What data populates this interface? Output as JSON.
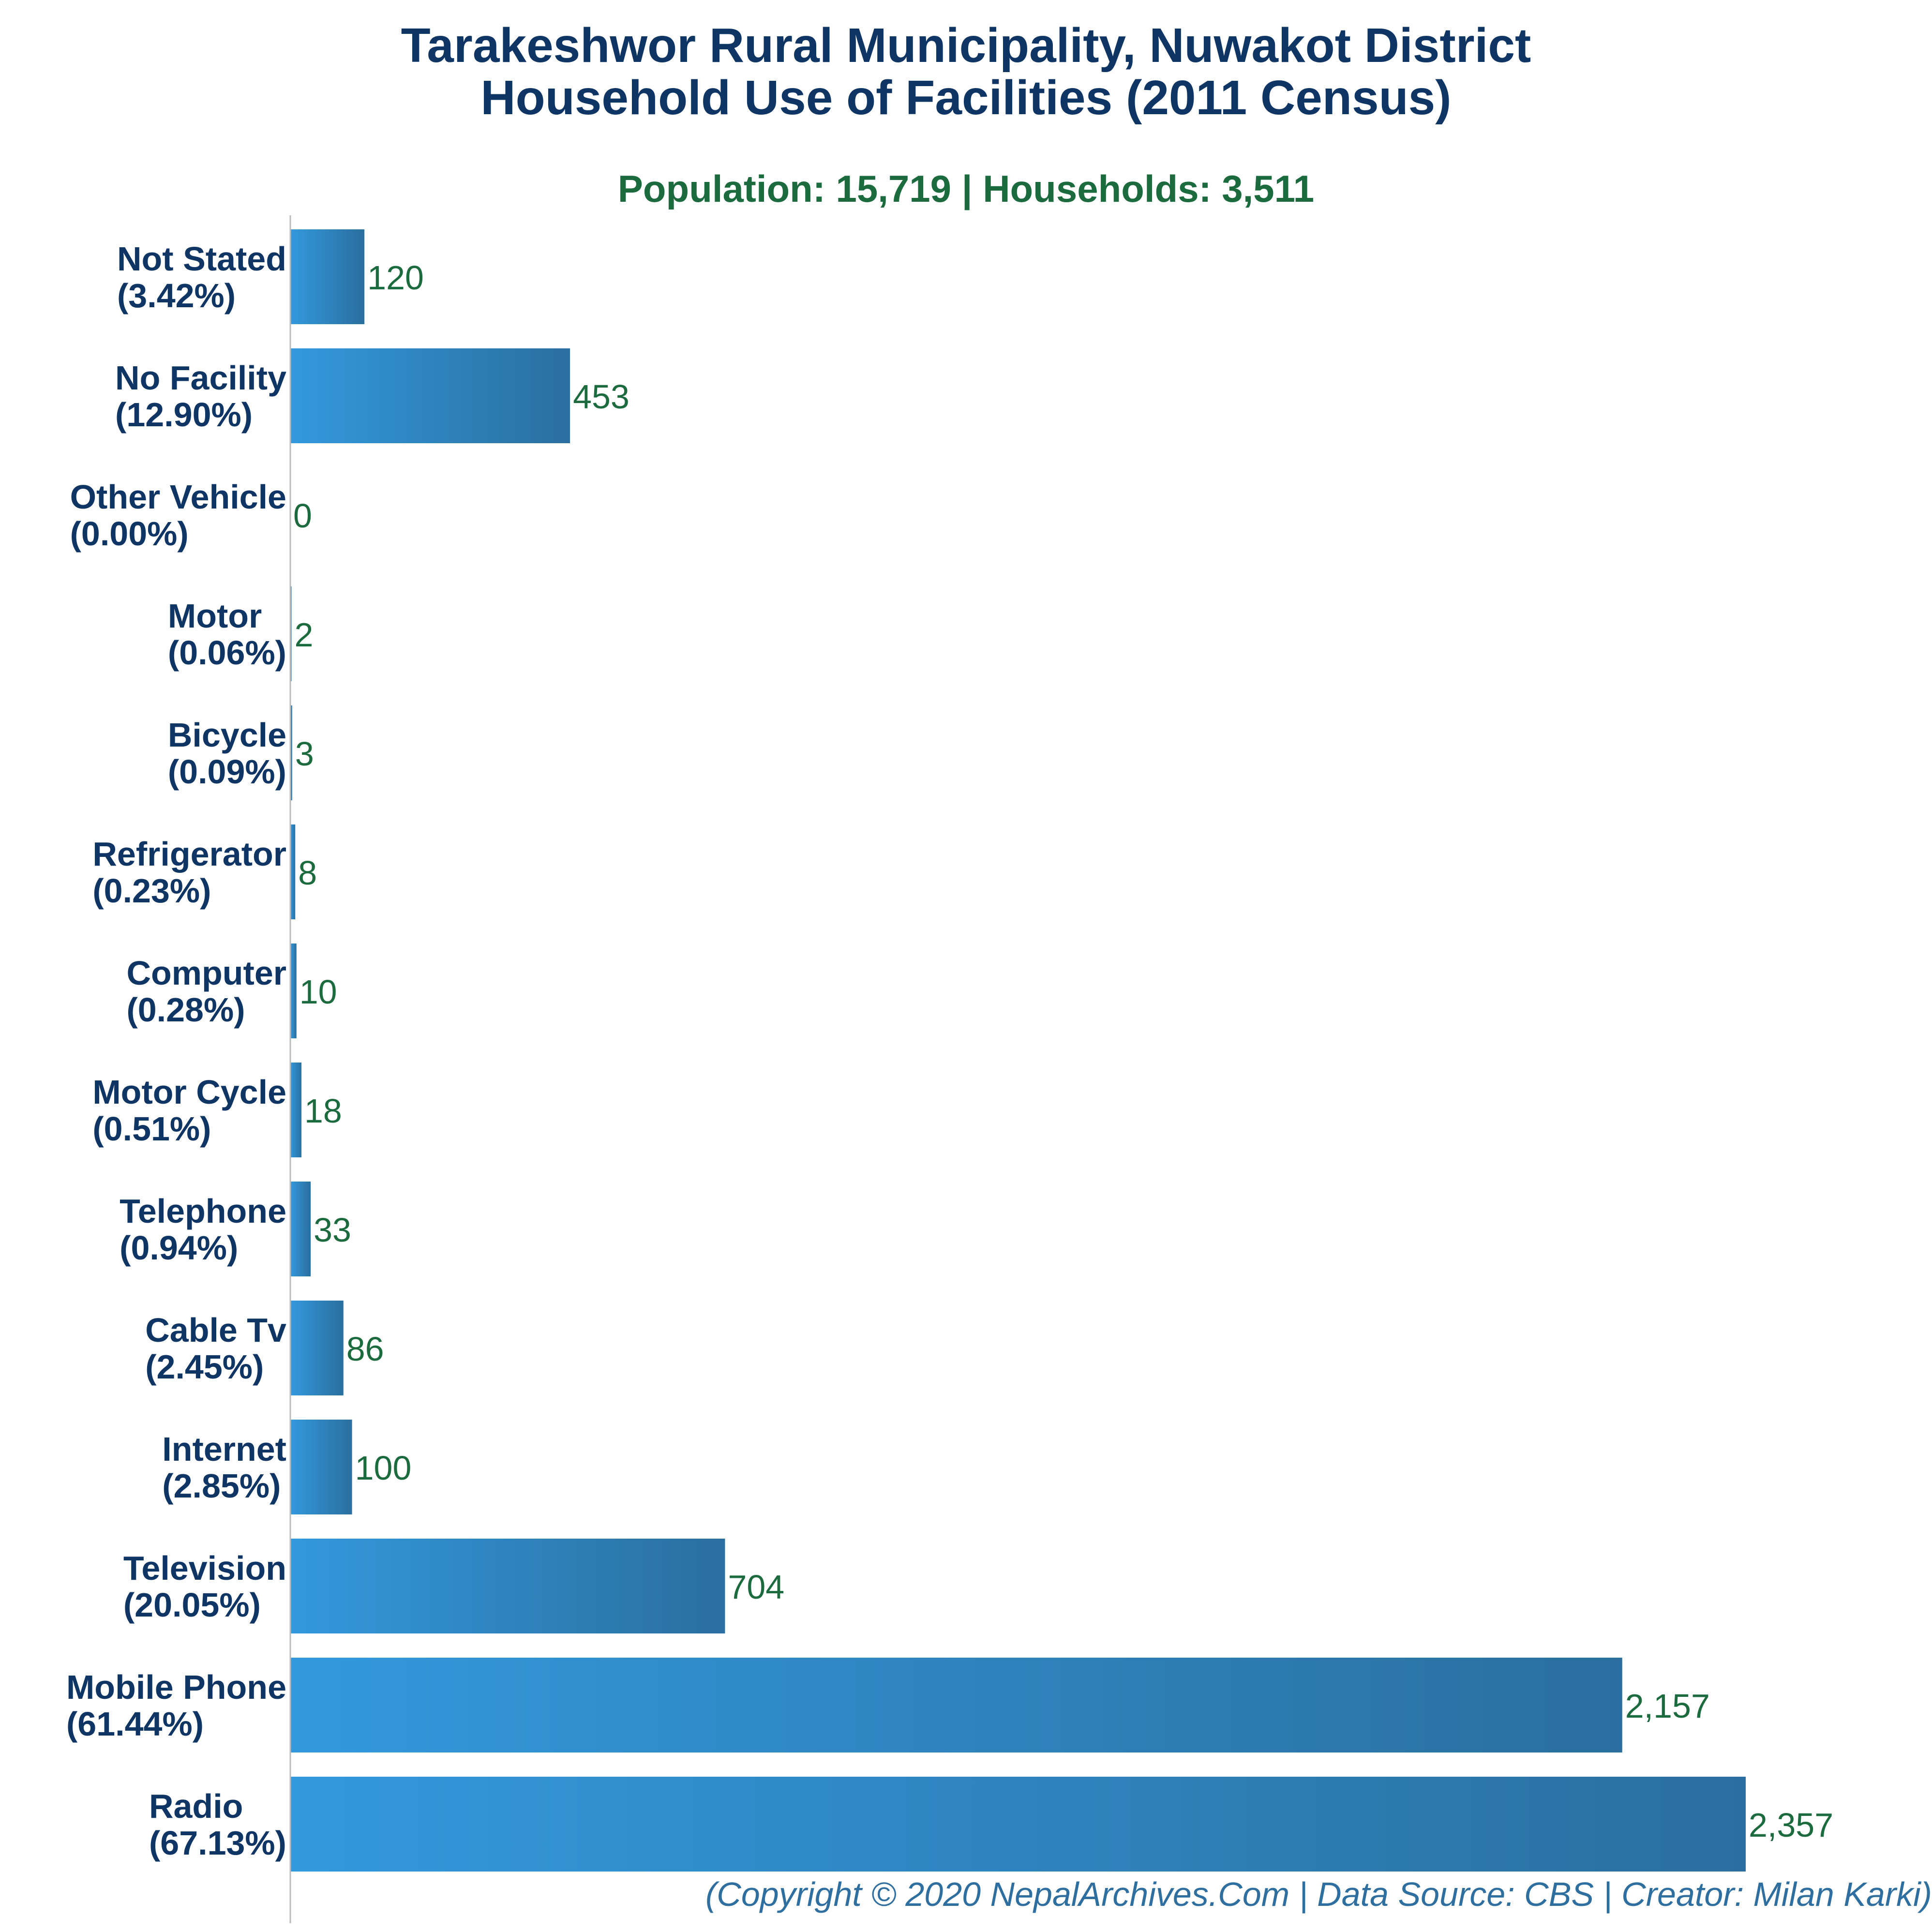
{
  "chart_data": {
    "type": "bar",
    "orientation": "horizontal",
    "title": "Tarakeshwor Rural Municipality, Nuwakot District",
    "title_line2": "Household Use of Facilities (2011 Census)",
    "subtitle": "Population: 15,719 | Households: 3,511",
    "categories": [
      "Not Stated",
      "No Facility",
      "Other Vehicle",
      "Motor",
      "Bicycle",
      "Refrigerator",
      "Computer",
      "Motor Cycle",
      "Telephone",
      "Cable Tv",
      "Internet",
      "Television",
      "Mobile Phone",
      "Radio"
    ],
    "percent_labels": [
      "(3.42%)",
      "(12.90%)",
      "(0.00%)",
      "(0.06%)",
      "(0.09%)",
      "(0.23%)",
      "(0.28%)",
      "(0.51%)",
      "(0.94%)",
      "(2.45%)",
      "(2.85%)",
      "(20.05%)",
      "(61.44%)",
      "(67.13%)"
    ],
    "values": [
      120,
      453,
      0,
      2,
      3,
      8,
      10,
      18,
      33,
      86,
      100,
      704,
      2157,
      2357
    ],
    "value_labels": [
      "120",
      "453",
      "0",
      "2",
      "3",
      "8",
      "10",
      "18",
      "33",
      "86",
      "100",
      "704",
      "2,157",
      "2,357"
    ],
    "xlim": [
      0,
      2357
    ],
    "grid": false,
    "colors": {
      "bar_light": "#3399dd",
      "bar_dark": "#2a6f9f",
      "value_label": "#1c6b3e",
      "category_label": "#0f3564",
      "title": "#0f3564",
      "subtitle": "#1c6b3e",
      "axis": "#bbbbbb"
    }
  },
  "footer": "(Copyright © 2020 NepalArchives.Com | Data Source: CBS | Creator: Milan Karki)"
}
